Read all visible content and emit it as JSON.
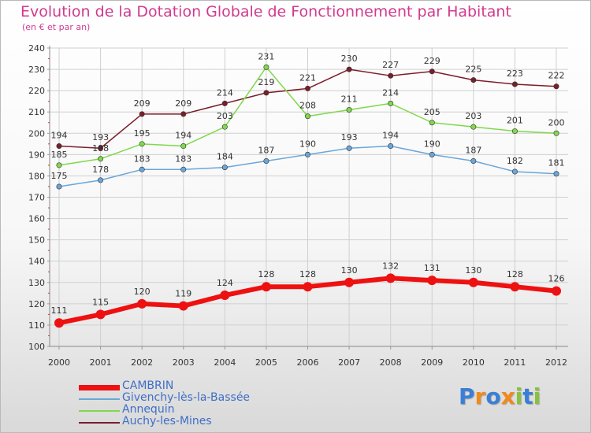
{
  "chart_data": {
    "type": "line",
    "title": "Evolution de la Dotation Globale de Fonctionnement par Habitant",
    "subtitle": "(en € et par an)",
    "xlabel": "",
    "ylabel": "",
    "ylim": [
      100,
      240
    ],
    "y_ticks": [
      "100",
      "110",
      "120",
      "130",
      "140",
      "150",
      "160",
      "170",
      "180",
      "190",
      "200",
      "210",
      "220",
      "230",
      "240"
    ],
    "categories": [
      "2000",
      "2001",
      "2002",
      "2003",
      "2004",
      "2005",
      "2006",
      "2007",
      "2008",
      "2009",
      "2010",
      "2011",
      "2012"
    ],
    "grid": true,
    "legend_position": "bottom-left",
    "series": [
      {
        "name": "Auchy-les-Mines",
        "color": "#7a1e2a",
        "values": [
          194,
          193,
          209,
          209,
          214,
          219,
          221,
          230,
          227,
          229,
          225,
          223,
          222
        ]
      },
      {
        "name": "Annequin",
        "color": "#7fd94a",
        "values": [
          185,
          188,
          195,
          194,
          203,
          231,
          208,
          211,
          214,
          205,
          203,
          201,
          200
        ]
      },
      {
        "name": "Givenchy-lès-la-Bassée",
        "color": "#6aa6d9",
        "values": [
          175,
          178,
          183,
          183,
          184,
          187,
          190,
          193,
          194,
          190,
          187,
          182,
          181
        ]
      },
      {
        "name": "CAMBRIN",
        "color": "#ee1111",
        "values": [
          111,
          115,
          120,
          119,
          124,
          128,
          128,
          130,
          132,
          131,
          130,
          128,
          126
        ]
      }
    ],
    "legend": [
      {
        "name": "CAMBRIN",
        "color": "#ee1111"
      },
      {
        "name": "Givenchy-lès-la-Bassée",
        "color": "#6aa6d9"
      },
      {
        "name": "Annequin",
        "color": "#7fd94a"
      },
      {
        "name": "Auchy-les-Mines",
        "color": "#7a1e2a"
      }
    ]
  },
  "logo": {
    "text": "Proxiti",
    "letter_colors": [
      "#3a7fd5",
      "#f08a1c",
      "#3a7fd5",
      "#f08a1c",
      "#88c23a",
      "#3a7fd5",
      "#88c23a"
    ]
  }
}
